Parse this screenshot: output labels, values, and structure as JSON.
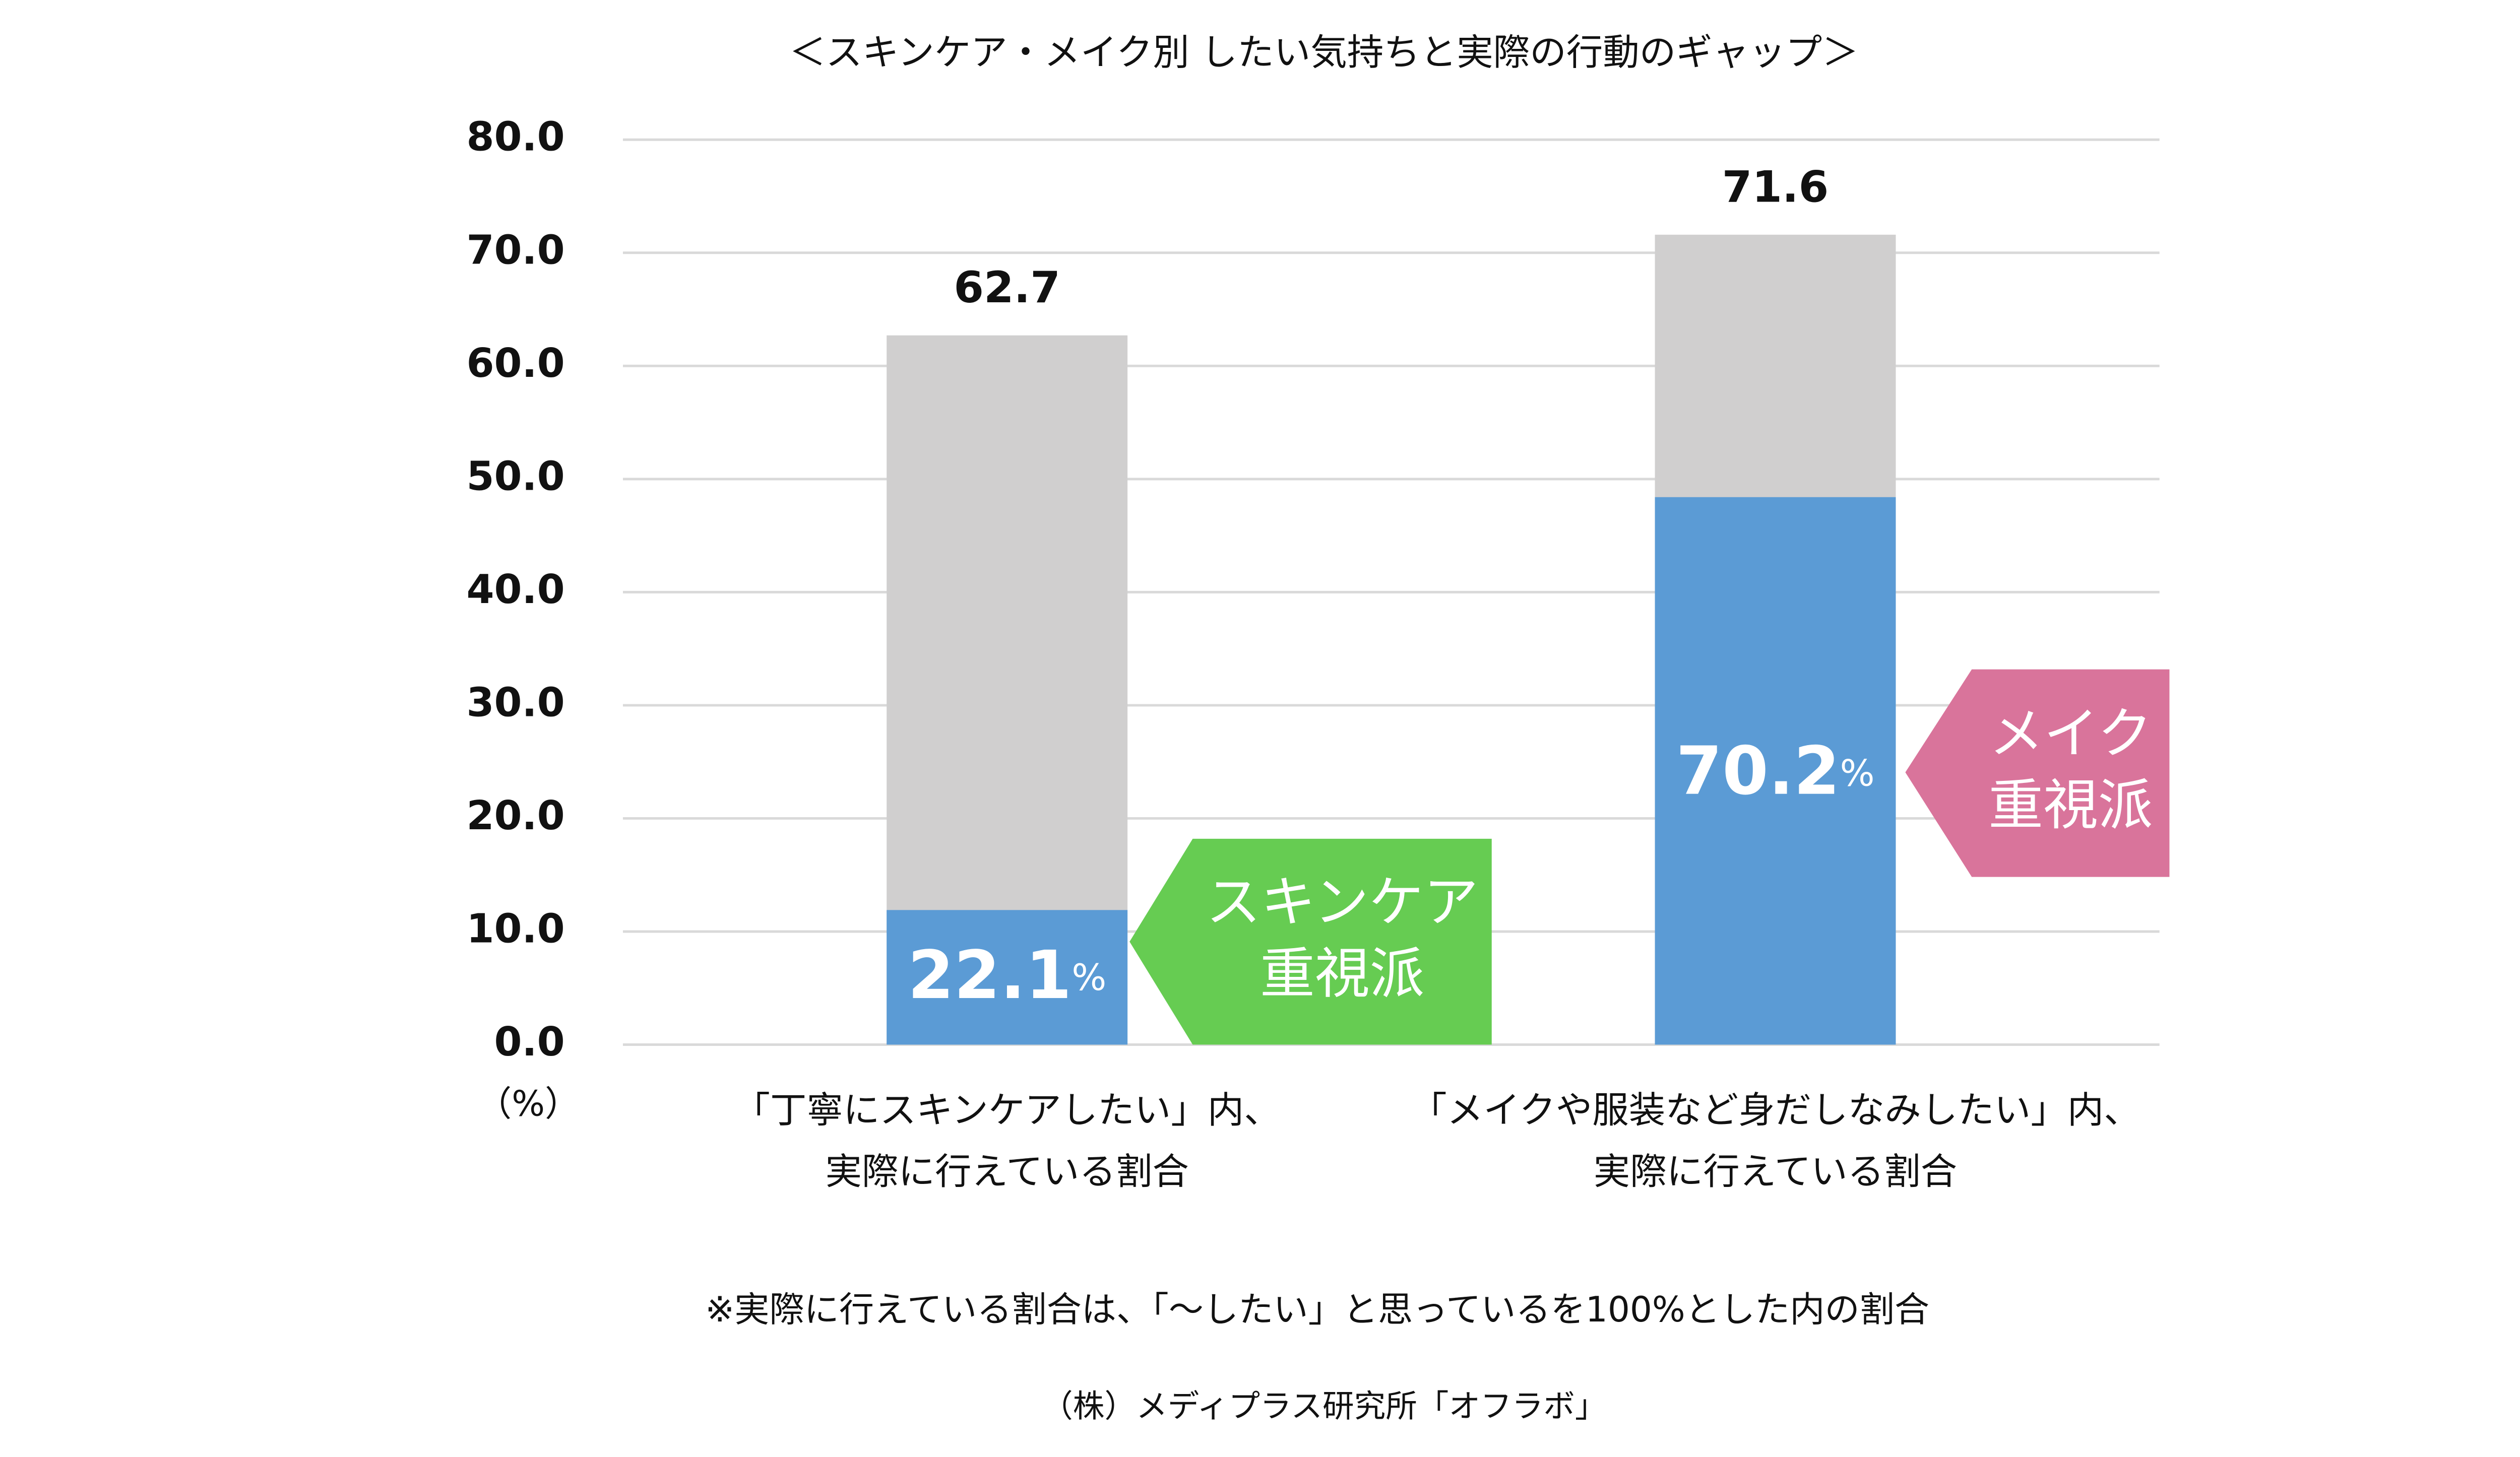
{
  "chart_data": {
    "type": "bar",
    "barmode": "overlay",
    "title": "＜スキンケア・メイク別 したい気持ちと実際の行動のギャップ＞",
    "y_unit_label": "（%）",
    "categories": [
      "「丁寧にスキンケアしたい」内、\n実際に行えている割合",
      "「メイクや服装など身だしなみしたい」内、\n実際に行えている割合"
    ],
    "series": [
      {
        "color": "#d0cfcf",
        "values": [
          62.7,
          71.6
        ],
        "show_value_labels": true
      },
      {
        "color": "#5b9bd5",
        "values": [
          11.9,
          48.4
        ]
      }
    ],
    "annotations": [
      {
        "text": "22.1",
        "unit": "%",
        "callout": [
          "スキンケア",
          "重視派"
        ],
        "color": "#66cc52"
      },
      {
        "text": "70.2",
        "unit": "%",
        "callout": [
          "メイク",
          "重視派"
        ],
        "color": "#d9749b"
      }
    ],
    "ylim": [
      0,
      80
    ],
    "yticks": [
      {
        "value": 0,
        "label": "0.0"
      },
      {
        "value": 10,
        "label": "10.0"
      },
      {
        "value": 20,
        "label": "20.0"
      },
      {
        "value": 30,
        "label": "30.0"
      },
      {
        "value": 40,
        "label": "40.0"
      },
      {
        "value": 50,
        "label": "50.0"
      },
      {
        "value": 60,
        "label": "60.0"
      },
      {
        "value": 70,
        "label": "70.0"
      },
      {
        "value": 80,
        "label": "80.0"
      }
    ],
    "grid": true,
    "note": "※実際に行えている割合は、「〜したい」と思っているを100%とした内の割合",
    "source": "（株）メディプラス研究所「オフラボ」"
  }
}
